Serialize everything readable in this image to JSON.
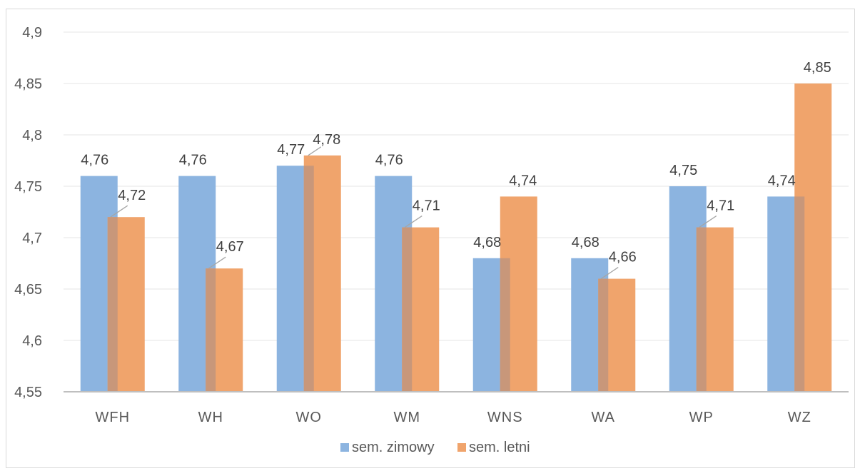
{
  "chart_data": {
    "type": "bar",
    "categories": [
      "WFH",
      "WH",
      "WO",
      "WM",
      "WNS",
      "WA",
      "WP",
      "WZ"
    ],
    "series": [
      {
        "name": "sem. zimowy",
        "values": [
          4.76,
          4.76,
          4.77,
          4.76,
          4.68,
          4.68,
          4.75,
          4.74
        ],
        "labels": [
          "4,76",
          "4,76",
          "4,77",
          "4,76",
          "4,68",
          "4,68",
          "4,75",
          "4,74"
        ],
        "color": "#8cb4e0"
      },
      {
        "name": "sem. letni",
        "values": [
          4.72,
          4.67,
          4.78,
          4.71,
          4.74,
          4.66,
          4.71,
          4.85
        ],
        "labels": [
          "4,72",
          "4,67",
          "4,78",
          "4,71",
          "4,74",
          "4,66",
          "4,71",
          "4,85"
        ],
        "color": "#f0a46c"
      }
    ],
    "ylim": [
      4.55,
      4.9
    ],
    "yticks": [
      4.55,
      4.6,
      4.65,
      4.7,
      4.75,
      4.8,
      4.85,
      4.9
    ],
    "ytick_labels": [
      "4,55",
      "4,6",
      "4,65",
      "4,7",
      "4,75",
      "4,8",
      "4,85",
      "4,9"
    ],
    "grid": true,
    "legend": "bottom",
    "overlap_color": "#c8977a",
    "title": "",
    "xlabel": "",
    "ylabel": ""
  }
}
